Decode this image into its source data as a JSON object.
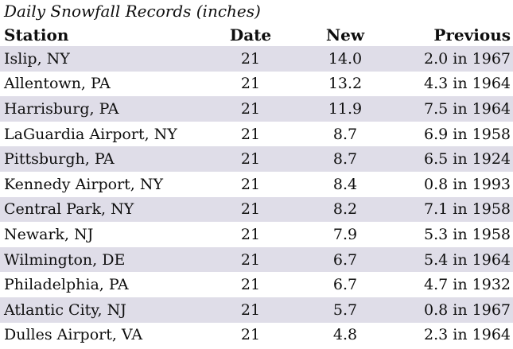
{
  "title": "Daily Snowfall Records (inches)",
  "colors": {
    "row_shade": "#dfdde8",
    "text": "#0e0e0e",
    "background": "#ffffff"
  },
  "table": {
    "columns": {
      "station": "Station",
      "date": "Date",
      "new": "New",
      "previous": "Previous"
    },
    "rows": [
      {
        "station": "Islip, NY",
        "date": "21",
        "new": "14.0",
        "previous": "2.0 in 1967"
      },
      {
        "station": "Allentown, PA",
        "date": "21",
        "new": "13.2",
        "previous": "4.3 in 1964"
      },
      {
        "station": "Harrisburg, PA",
        "date": "21",
        "new": "11.9",
        "previous": "7.5 in 1964"
      },
      {
        "station": "LaGuardia Airport, NY",
        "date": "21",
        "new": "8.7",
        "previous": "6.9 in 1958"
      },
      {
        "station": "Pittsburgh, PA",
        "date": "21",
        "new": "8.7",
        "previous": "6.5 in 1924"
      },
      {
        "station": "Kennedy Airport, NY",
        "date": "21",
        "new": "8.4",
        "previous": "0.8 in 1993"
      },
      {
        "station": "Central Park, NY",
        "date": "21",
        "new": "8.2",
        "previous": "7.1 in 1958"
      },
      {
        "station": "Newark, NJ",
        "date": "21",
        "new": "7.9",
        "previous": "5.3 in 1958"
      },
      {
        "station": "Wilmington, DE",
        "date": "21",
        "new": "6.7",
        "previous": "5.4 in 1964"
      },
      {
        "station": "Philadelphia, PA",
        "date": "21",
        "new": "6.7",
        "previous": "4.7 in 1932"
      },
      {
        "station": "Atlantic City, NJ",
        "date": "21",
        "new": "5.7",
        "previous": "0.8 in 1967"
      },
      {
        "station": "Dulles Airport, VA",
        "date": "21",
        "new": "4.8",
        "previous": "2.3 in 1964"
      }
    ]
  }
}
